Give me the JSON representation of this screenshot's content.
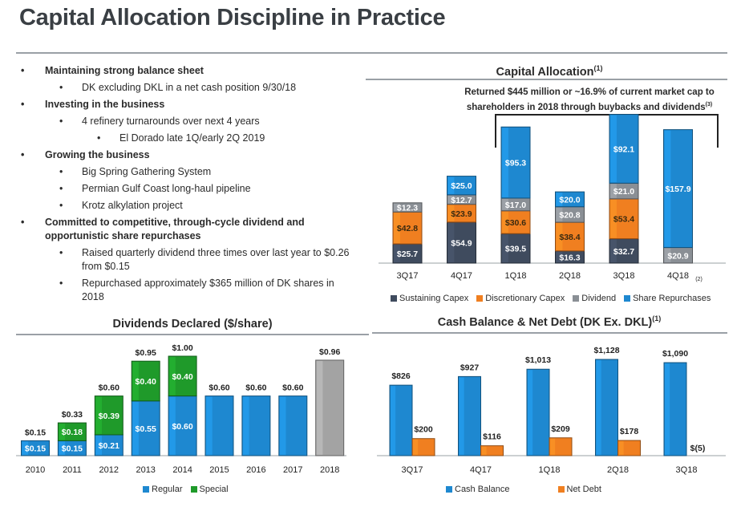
{
  "page": {
    "title": "Capital Allocation Discipline in Practice"
  },
  "bullets": [
    {
      "level": 0,
      "text": "Maintaining strong balance sheet"
    },
    {
      "level": 1,
      "text": "DK excluding DKL in a net cash position 9/30/18"
    },
    {
      "level": 0,
      "text": "Investing in the business"
    },
    {
      "level": 1,
      "text": "4 refinery turnarounds over next 4 years"
    },
    {
      "level": 2,
      "text": "El Dorado late 1Q/early 2Q 2019"
    },
    {
      "level": 0,
      "text": "Growing the business"
    },
    {
      "level": 1,
      "text": "Big Spring Gathering System"
    },
    {
      "level": 1,
      "text": "Permian Gulf Coast long-haul pipeline"
    },
    {
      "level": 1,
      "text": "Krotz alkylation project"
    },
    {
      "level": 0,
      "text": "Committed to competitive, through-cycle dividend and opportunistic share repurchases"
    },
    {
      "level": 1,
      "text": "Raised quarterly dividend three times over last year to $0.26 from $0.15"
    },
    {
      "level": 1,
      "text": "Repurchased approximately $365 million of DK shares in 2018"
    }
  ],
  "bullet_char": "•",
  "capital_allocation": {
    "heading": "Capital Allocation",
    "heading_sup": "(1)",
    "note": "Returned $445 million or ~16.9% of current market cap to shareholders in 2018 through buybacks and dividends",
    "note_sup": "(3)"
  },
  "dividends": {
    "heading": "Dividends Declared ($/share)"
  },
  "cash": {
    "heading": "Cash Balance & Net Debt (DK Ex. DKL)",
    "heading_sup": "(1)"
  },
  "colors": {
    "sustaining": "#3f4b5e",
    "discretionary": "#f07f20",
    "dividend": "#8a8f95",
    "repurchase": "#1e88d0",
    "regular": "#1e88d0",
    "special": "#1f9a2a",
    "gray_bar": "#a3a3a3",
    "cash": "#1e88d0",
    "net_debt": "#f07f20"
  },
  "chart_data": [
    {
      "id": "capital-allocation",
      "type": "bar",
      "stacked": true,
      "categories": [
        "3Q17",
        "4Q17",
        "1Q18",
        "2Q18",
        "3Q18",
        "4Q18"
      ],
      "category_footnotes": [
        "",
        "",
        "",
        "",
        "",
        "(2)"
      ],
      "series": [
        {
          "name": "Sustaining Capex",
          "values": [
            25.7,
            54.9,
            39.5,
            16.3,
            32.7,
            0
          ],
          "labels": [
            "$25.7",
            "$54.9",
            "$39.5",
            "$16.3",
            "$32.7",
            ""
          ]
        },
        {
          "name": "Discretionary Capex",
          "values": [
            42.8,
            23.9,
            30.6,
            38.4,
            53.4,
            0
          ],
          "labels": [
            "$42.8",
            "$23.9",
            "$30.6",
            "$38.4",
            "$53.4",
            ""
          ]
        },
        {
          "name": "Dividend",
          "values": [
            12.3,
            12.7,
            17.0,
            20.8,
            21.0,
            20.9
          ],
          "labels": [
            "$12.3",
            "$12.7",
            "$17.0",
            "$20.8",
            "$21.0",
            "$20.9"
          ]
        },
        {
          "name": "Share Repurchases",
          "values": [
            0,
            25.0,
            95.3,
            20.0,
            92.1,
            157.9
          ],
          "labels": [
            "",
            "$25.0",
            "$95.3",
            "$20.0",
            "$92.1",
            "$157.9"
          ]
        }
      ],
      "legend_position": "bottom"
    },
    {
      "id": "dividends-declared",
      "type": "bar",
      "stacked": true,
      "categories": [
        "2010",
        "2011",
        "2012",
        "2013",
        "2014",
        "2015",
        "2016",
        "2017",
        "2018"
      ],
      "series": [
        {
          "name": "Regular",
          "values": [
            0.15,
            0.15,
            0.21,
            0.55,
            0.6,
            0.6,
            0.6,
            0.6,
            0.96
          ],
          "labels": [
            "$0.15",
            "$0.15",
            "$0.21",
            "$0.55",
            "$0.60",
            "",
            "",
            "",
            ""
          ]
        },
        {
          "name": "Special",
          "values": [
            0,
            0.18,
            0.39,
            0.4,
            0.4,
            0,
            0,
            0,
            0
          ],
          "labels": [
            "",
            "$0.18",
            "$0.39",
            "$0.40",
            "$0.40",
            "",
            "",
            "",
            ""
          ]
        }
      ],
      "totals": [
        "$0.15",
        "$0.33",
        "$0.60",
        "$0.95",
        "$1.00",
        "$0.60",
        "$0.60",
        "$0.60",
        "$0.96"
      ],
      "legend_position": "bottom"
    },
    {
      "id": "cash-net-debt",
      "type": "bar",
      "stacked": false,
      "categories": [
        "3Q17",
        "4Q17",
        "1Q18",
        "2Q18",
        "3Q18"
      ],
      "series": [
        {
          "name": "Cash Balance",
          "values": [
            826,
            927,
            1013,
            1128,
            1090
          ],
          "labels": [
            "$826",
            "$927",
            "$1,013",
            "$1,128",
            "$1,090"
          ]
        },
        {
          "name": "Net Debt",
          "values": [
            200,
            116,
            209,
            178,
            -5
          ],
          "labels": [
            "$200",
            "$116",
            "$209",
            "$178",
            "$(5)"
          ]
        }
      ],
      "legend_position": "bottom"
    }
  ]
}
